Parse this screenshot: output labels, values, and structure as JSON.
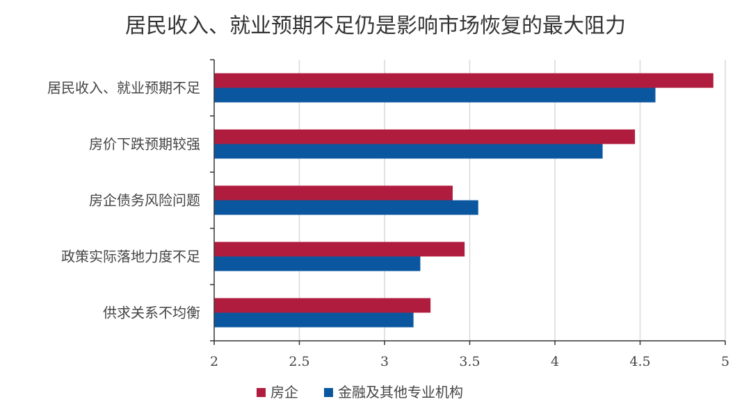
{
  "chart_data": {
    "type": "bar",
    "orientation": "horizontal",
    "title": "居民收入、就业预期不足仍是影响市场恢复的最大阻力",
    "categories": [
      "居民收入、就业预期不足",
      "房价下跌预期较强",
      "房企债务风险问题",
      "政策实际落地力度不足",
      "供求关系不均衡"
    ],
    "series": [
      {
        "name": "房企",
        "color": "#b01c3e",
        "values": [
          4.93,
          4.47,
          3.4,
          3.47,
          3.27
        ]
      },
      {
        "name": "金融及其他专业机构",
        "color": "#0a57a0",
        "values": [
          4.59,
          4.28,
          3.55,
          3.21,
          3.17
        ]
      }
    ],
    "xlim": [
      2,
      5
    ],
    "x_ticks": [
      "2",
      "2.5",
      "3",
      "3.5",
      "4",
      "4.5",
      "5"
    ],
    "xlabel": "",
    "ylabel": "",
    "grid": true,
    "gridline_color": "#d9d9d9",
    "axis_color": "#333333",
    "legend_position": "bottom"
  }
}
